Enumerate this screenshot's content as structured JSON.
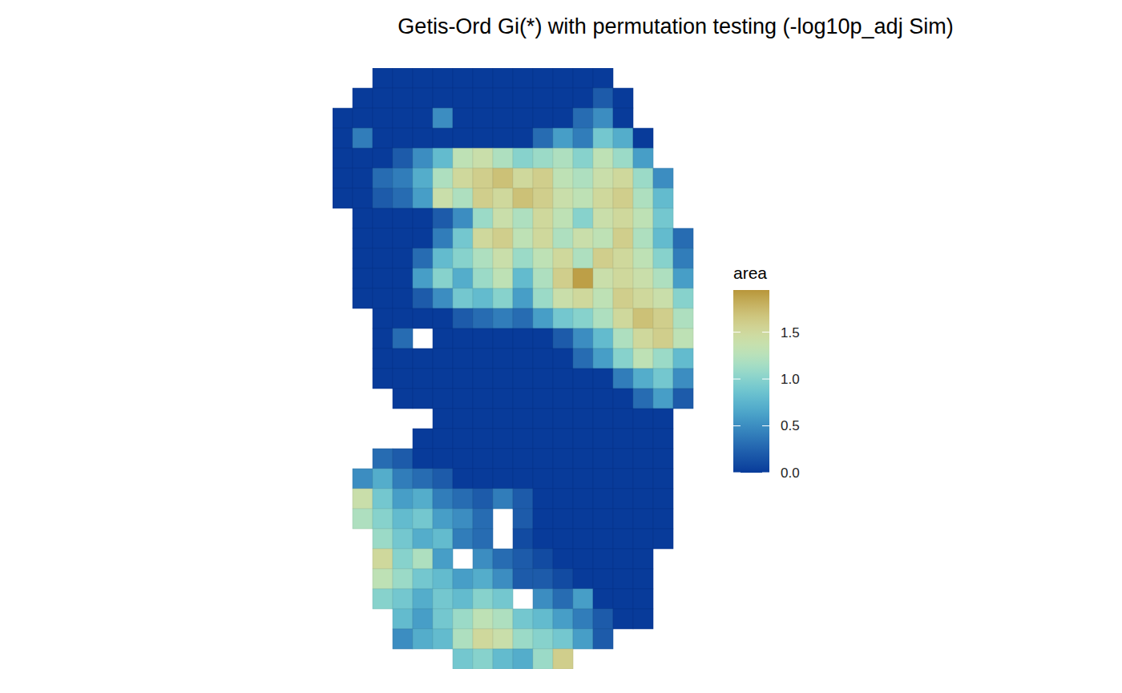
{
  "chart_data": {
    "type": "heatmap",
    "title": "Getis-Ord Gi(*) with permutation testing (-log10p_adj Sim)",
    "colorbar": {
      "title": "area",
      "range": [
        0,
        1.95
      ],
      "ticks": [
        {
          "value": 0,
          "label": "0.0"
        },
        0.5,
        {
          "value": 1,
          "label": "1.0"
        },
        1.5
      ]
    },
    "z": [
      [
        null,
        null,
        0,
        0,
        0,
        0,
        0,
        0,
        0,
        0,
        0,
        0,
        0,
        0,
        null,
        null,
        null,
        null,
        null
      ],
      [
        null,
        0,
        0,
        0,
        0,
        0,
        0,
        0,
        0,
        0,
        0,
        0,
        0,
        0.2,
        0,
        null,
        null,
        null,
        null
      ],
      [
        0,
        0,
        0,
        0,
        0,
        0.5,
        0,
        0,
        0,
        0,
        0,
        0,
        0.3,
        0.5,
        0,
        null,
        null,
        null,
        null
      ],
      [
        0,
        0.4,
        0,
        0,
        0,
        0,
        0,
        0,
        0,
        0,
        0.3,
        0.6,
        0.4,
        0.9,
        0.7,
        0,
        null,
        null,
        null
      ],
      [
        0,
        0,
        0,
        0.2,
        0.5,
        0.8,
        1.3,
        1.4,
        1.2,
        1.0,
        1.1,
        1.2,
        1.0,
        1.3,
        1.1,
        0.6,
        null,
        null,
        null
      ],
      [
        0,
        0,
        0.3,
        0.4,
        0.7,
        1.2,
        1.5,
        1.6,
        1.7,
        1.5,
        1.6,
        1.3,
        1.2,
        1.4,
        1.5,
        1.1,
        0.5,
        null,
        null
      ],
      [
        0,
        0,
        0.2,
        0.3,
        0.6,
        1.4,
        1.2,
        1.6,
        1.5,
        1.7,
        1.6,
        1.4,
        1.3,
        1.5,
        1.6,
        1.2,
        0.8,
        null,
        null
      ],
      [
        null,
        0,
        0,
        0,
        0,
        0.2,
        0.5,
        1.1,
        1.4,
        1.2,
        1.5,
        1.3,
        1.0,
        1.4,
        1.5,
        1.3,
        0.9,
        null,
        null
      ],
      [
        null,
        0,
        0,
        0,
        0,
        0.4,
        0.9,
        1.5,
        1.6,
        1.3,
        1.5,
        1.2,
        1.4,
        1.3,
        1.6,
        1.2,
        0.8,
        0.3,
        null
      ],
      [
        null,
        0,
        0,
        0,
        0.3,
        0.8,
        1.0,
        1.2,
        1.4,
        1.1,
        1.3,
        1.5,
        1.2,
        1.6,
        1.5,
        1.3,
        1.0,
        0.4,
        null
      ],
      [
        null,
        0,
        0,
        0,
        0.6,
        1.0,
        0.7,
        1.1,
        1.3,
        0.8,
        1.2,
        1.6,
        1.9,
        1.4,
        1.5,
        1.4,
        1.2,
        0.6,
        null
      ],
      [
        null,
        0,
        0,
        0,
        0.2,
        0.5,
        0.9,
        0.8,
        1.0,
        0.6,
        1.1,
        1.4,
        1.5,
        1.3,
        1.6,
        1.5,
        1.4,
        1.0,
        null
      ],
      [
        null,
        null,
        0,
        0,
        0,
        0,
        0.2,
        0.3,
        0.4,
        0.3,
        0.6,
        0.9,
        1.0,
        1.2,
        1.5,
        1.7,
        1.6,
        1.2,
        null
      ],
      [
        null,
        null,
        0,
        0.3,
        null,
        0,
        0,
        0,
        0,
        0,
        0,
        0.2,
        0.5,
        0.8,
        1.2,
        1.5,
        1.6,
        1.3,
        null
      ],
      [
        null,
        null,
        0,
        0,
        0,
        0,
        0,
        0,
        0,
        0,
        0,
        0,
        0.3,
        0.6,
        1.0,
        1.3,
        1.1,
        0.8,
        null
      ],
      [
        null,
        null,
        0,
        0,
        0,
        0,
        0,
        0,
        0,
        0,
        0,
        0,
        0,
        0,
        0.4,
        0.7,
        0.9,
        0.5,
        null
      ],
      [
        null,
        null,
        null,
        0,
        0,
        0,
        0,
        0,
        0,
        0,
        0,
        0,
        0,
        0,
        0,
        0.3,
        0.6,
        0.2,
        null
      ],
      [
        null,
        null,
        null,
        null,
        null,
        0,
        0,
        0,
        0,
        0,
        0,
        0,
        0,
        0,
        0,
        0,
        0,
        null,
        null
      ],
      [
        null,
        null,
        null,
        null,
        0,
        0,
        0,
        0,
        0,
        0,
        0,
        0,
        0,
        0,
        0,
        0,
        0,
        null,
        null
      ],
      [
        null,
        null,
        0.3,
        0.2,
        0,
        0,
        0,
        0,
        0,
        0,
        0,
        0,
        0,
        0,
        0,
        0,
        0,
        null,
        null
      ],
      [
        null,
        0.5,
        0.7,
        0.4,
        0.3,
        0.2,
        0,
        0,
        0,
        0,
        0,
        0,
        0,
        0,
        0,
        0,
        0,
        null,
        null
      ],
      [
        null,
        1.4,
        0.9,
        0.6,
        0.7,
        0.4,
        0.3,
        0.2,
        0.4,
        0.2,
        0,
        0,
        0,
        0,
        0,
        0,
        0,
        null,
        null
      ],
      [
        null,
        1.2,
        1.0,
        0.8,
        0.9,
        0.6,
        0.5,
        0.3,
        null,
        0.2,
        0,
        0,
        0,
        0,
        0,
        0,
        0,
        null,
        null
      ],
      [
        null,
        null,
        1.1,
        0.9,
        0.7,
        0.8,
        0.4,
        0.3,
        null,
        0.1,
        0,
        0,
        0,
        0,
        0,
        0,
        0,
        null,
        null
      ],
      [
        null,
        null,
        1.5,
        1.0,
        1.2,
        0.6,
        null,
        0.5,
        0.3,
        0.2,
        0.1,
        0,
        0,
        0,
        0,
        0,
        null,
        null,
        null
      ],
      [
        null,
        null,
        1.3,
        1.1,
        0.9,
        0.8,
        0.6,
        0.7,
        0.5,
        0.2,
        0.2,
        0.1,
        0,
        0,
        0,
        0,
        null,
        null,
        null
      ],
      [
        null,
        null,
        1.0,
        0.9,
        0.7,
        0.9,
        0.8,
        1.0,
        0.9,
        null,
        0.5,
        0.3,
        0.6,
        0,
        0,
        0,
        null,
        null,
        null
      ],
      [
        null,
        null,
        null,
        0.8,
        0.6,
        0.9,
        1.1,
        1.3,
        1.2,
        0.9,
        0.8,
        0.6,
        0.4,
        0.2,
        0,
        0,
        null,
        null,
        null
      ],
      [
        null,
        null,
        null,
        0.5,
        0.7,
        0.8,
        1.2,
        1.5,
        1.4,
        1.1,
        1.0,
        0.9,
        0.6,
        0.2,
        null,
        null,
        null,
        null,
        null
      ],
      [
        null,
        null,
        null,
        null,
        null,
        null,
        0.9,
        1.0,
        0.8,
        0.7,
        1.1,
        1.6,
        null,
        null,
        null,
        null,
        null,
        null,
        null
      ]
    ]
  }
}
